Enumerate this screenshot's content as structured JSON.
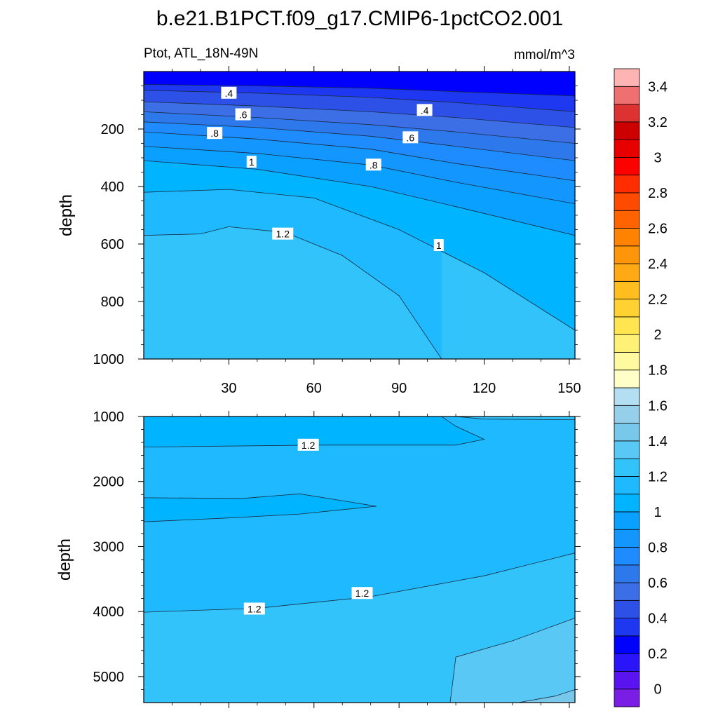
{
  "chart_data": [
    {
      "type": "contour",
      "panel": "upper",
      "title": "b.e21.B1PCT.f09_g17.CMIP6-1pctCO2.001",
      "subtitle_left": "Ptot, ATL_18N-49N",
      "subtitle_right": "mmol/m^3",
      "xlabel": "",
      "ylabel": "depth",
      "xlim": [
        0,
        152
      ],
      "ylim": [
        1000,
        0
      ],
      "xticks": [
        30,
        60,
        90,
        120,
        150
      ],
      "xtick_labels": [
        "30",
        "60",
        "90",
        "120",
        "150"
      ],
      "yticks": [
        200,
        400,
        600,
        800,
        1000
      ],
      "ytick_labels": [
        "200",
        "400",
        "600",
        "800",
        "1000"
      ],
      "contour_lines": [
        {
          "level": 0.3,
          "points": [
            [
              0,
              45
            ],
            [
              40,
              50
            ],
            [
              80,
              58
            ],
            [
              110,
              70
            ],
            [
              152,
              85
            ]
          ]
        },
        {
          "level": 0.4,
          "points": [
            [
              0,
              65
            ],
            [
              40,
              75
            ],
            [
              80,
              90
            ],
            [
              110,
              108
            ],
            [
              152,
              140
            ]
          ]
        },
        {
          "level": 0.5,
          "points": [
            [
              0,
              105
            ],
            [
              40,
              120
            ],
            [
              80,
              140
            ],
            [
              110,
              160
            ],
            [
              152,
              195
            ]
          ]
        },
        {
          "level": 0.6,
          "points": [
            [
              0,
              140
            ],
            [
              40,
              160
            ],
            [
              80,
              185
            ],
            [
              110,
              210
            ],
            [
              152,
              250
            ]
          ]
        },
        {
          "level": 0.7,
          "points": [
            [
              0,
              175
            ],
            [
              40,
              195
            ],
            [
              80,
              225
            ],
            [
              110,
              260
            ],
            [
              152,
              310
            ]
          ]
        },
        {
          "level": 0.8,
          "points": [
            [
              0,
              210
            ],
            [
              40,
              235
            ],
            [
              80,
              270
            ],
            [
              110,
              320
            ],
            [
              152,
              380
            ]
          ]
        },
        {
          "level": 0.9,
          "points": [
            [
              0,
              260
            ],
            [
              40,
              285
            ],
            [
              80,
              325
            ],
            [
              110,
              385
            ],
            [
              152,
              460
            ]
          ]
        },
        {
          "level": 1.0,
          "points": [
            [
              0,
              310
            ],
            [
              40,
              340
            ],
            [
              80,
              400
            ],
            [
              110,
              470
            ],
            [
              152,
              570
            ]
          ]
        },
        {
          "level": 1.1,
          "points": [
            [
              0,
              420
            ],
            [
              30,
              410
            ],
            [
              60,
              440
            ],
            [
              90,
              550
            ],
            [
              120,
              700
            ],
            [
              152,
              900
            ]
          ]
        },
        {
          "level": 1.2,
          "points": [
            [
              0,
              570
            ],
            [
              20,
              565
            ],
            [
              30,
              540
            ],
            [
              50,
              560
            ],
            [
              70,
              640
            ],
            [
              90,
              780
            ],
            [
              105,
              1000
            ]
          ]
        }
      ],
      "contour_labels": [
        {
          "text": ".4",
          "x": 30,
          "y": 75
        },
        {
          "text": ".4",
          "x": 99,
          "y": 135
        },
        {
          "text": ".6",
          "x": 35,
          "y": 150
        },
        {
          "text": ".6",
          "x": 94,
          "y": 230
        },
        {
          "text": ".8",
          "x": 25,
          "y": 215
        },
        {
          "text": ".8",
          "x": 81,
          "y": 325
        },
        {
          "text": "1",
          "x": 38,
          "y": 315
        },
        {
          "text": "1",
          "x": 104,
          "y": 605
        },
        {
          "text": "1.2",
          "x": 49,
          "y": 565
        }
      ]
    },
    {
      "type": "contour",
      "panel": "lower",
      "xlabel": "",
      "ylabel": "depth",
      "xlim": [
        0,
        152
      ],
      "ylim": [
        5400,
        1000
      ],
      "xticks": [
        30,
        60,
        90,
        120,
        150
      ],
      "yticks": [
        1000,
        2000,
        3000,
        4000,
        5000
      ],
      "ytick_labels": [
        "1000",
        "2000",
        "3000",
        "4000",
        "5000"
      ],
      "contour_lines": [
        {
          "level": 1.2,
          "points": [
            [
              0,
              1470
            ],
            [
              60,
              1440
            ],
            [
              110,
              1440
            ],
            [
              120,
              1350
            ],
            [
              110,
              1150
            ],
            [
              105,
              1000
            ]
          ]
        },
        {
          "level": 1.1,
          "points": [
            [
              0,
              2250
            ],
            [
              35,
              2260
            ],
            [
              55,
              2190
            ],
            [
              82,
              2380
            ],
            [
              55,
              2500
            ],
            [
              30,
              2560
            ],
            [
              0,
              2620
            ]
          ]
        },
        {
          "level": 1.2,
          "points": [
            [
              0,
              4010
            ],
            [
              40,
              3950
            ],
            [
              80,
              3770
            ],
            [
              120,
              3450
            ],
            [
              152,
              3100
            ]
          ]
        },
        {
          "level": 1.2,
          "points": [
            [
              152,
              1050
            ],
            [
              120,
              1040
            ],
            [
              110,
              1000
            ]
          ]
        },
        {
          "level": 1.3,
          "points": [
            [
              108,
              5400
            ],
            [
              110,
              4700
            ],
            [
              130,
              4450
            ],
            [
              152,
              4100
            ]
          ]
        },
        {
          "level": 1.4,
          "points": [
            [
              132,
              5400
            ],
            [
              145,
              5300
            ],
            [
              152,
              5200
            ]
          ]
        }
      ],
      "contour_labels": [
        {
          "text": "1.2",
          "x": 58,
          "y": 1440
        },
        {
          "text": "1.2",
          "x": 39,
          "y": 3960
        },
        {
          "text": "1.2",
          "x": 77,
          "y": 3720
        }
      ]
    }
  ],
  "colorbar": {
    "levels": [
      -0.1,
      0,
      0.1,
      0.2,
      0.3,
      0.4,
      0.5,
      0.6,
      0.7,
      0.8,
      0.9,
      1,
      1.1,
      1.2,
      1.3,
      1.4,
      1.5,
      1.6,
      1.7,
      1.8,
      1.9,
      2,
      2.1,
      2.2,
      2.3,
      2.4,
      2.5,
      2.6,
      2.7,
      2.8,
      2.9,
      3,
      3.1,
      3.2,
      3.3,
      3.4,
      3.5,
      3.6
    ],
    "tick_labels": [
      "0",
      "0.2",
      "0.4",
      "0.6",
      "0.8",
      "1",
      "1.2",
      "1.4",
      "1.6",
      "1.8",
      "2",
      "2.2",
      "2.4",
      "2.6",
      "2.8",
      "3",
      "3.2",
      "3.4"
    ],
    "colors": [
      "#7a1ee6",
      "#5a14f0",
      "#2a14fa",
      "#0000ff",
      "#1e37f0",
      "#2d50e6",
      "#3c6ee6",
      "#2d78eb",
      "#1e8cff",
      "#1496ff",
      "#0aa0ff",
      "#00b4ff",
      "#1eb9ff",
      "#32c3fa",
      "#5ac8f5",
      "#78c8ec",
      "#96cfea",
      "#b4dff2",
      "#ffffc8",
      "#fffaa0",
      "#fff078",
      "#ffe650",
      "#ffd232",
      "#ffbe1e",
      "#ffaa14",
      "#ff960a",
      "#ff8200",
      "#ff6400",
      "#ff4b00",
      "#ff2d00",
      "#ff0000",
      "#e60000",
      "#cd0000",
      "#dc3232",
      "#ee7070",
      "#ffb4b4"
    ]
  }
}
